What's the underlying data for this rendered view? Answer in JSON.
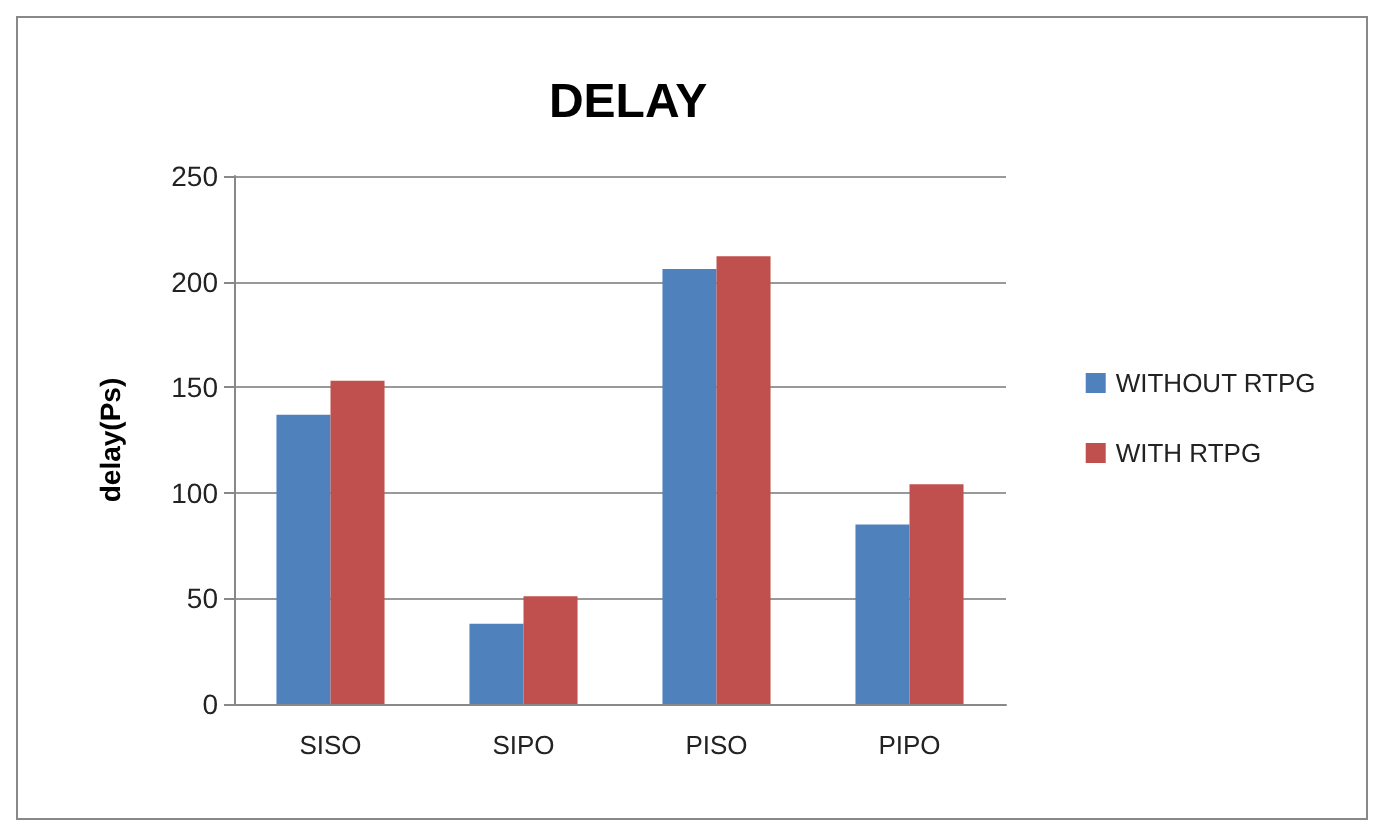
{
  "chart_data": {
    "type": "bar",
    "title": "DELAY",
    "ylabel": "delay(Ps)",
    "categories": [
      "SISO",
      "SIPO",
      "PISO",
      "PIPO"
    ],
    "series": [
      {
        "name": "WITHOUT RTPG",
        "color": "#4f81bd",
        "values": [
          137,
          38,
          206,
          85
        ]
      },
      {
        "name": "WITH RTPG",
        "color": "#c0504d",
        "values": [
          153,
          51,
          212,
          104
        ]
      }
    ],
    "ylim": [
      0,
      250
    ],
    "yticks": [
      0,
      50,
      100,
      150,
      200,
      250
    ],
    "grid": "y",
    "legend": "right"
  }
}
